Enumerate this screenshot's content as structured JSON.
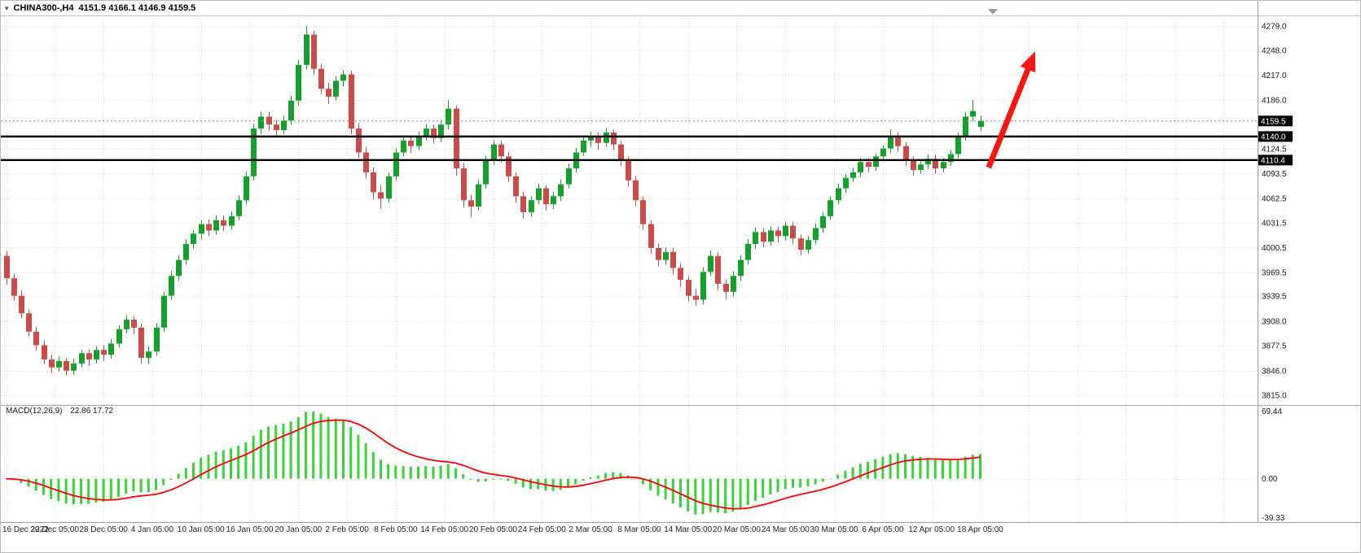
{
  "window": {
    "title_symbol": "CHINA300-,H4",
    "title_ohlc": "4151.9 4166.1 4146.9 4159.5"
  },
  "indicator_label": {
    "name": "MACD(12,26,9)",
    "values": "22.86 17.72"
  },
  "colors": {
    "bull": "#14a02d",
    "bear": "#cd4a4a",
    "macd_histogram": "#3ad13a",
    "macd_signal": "#ff0000",
    "grid": "#d6d6d6",
    "hline": "#000000",
    "tag_bg": "#000000",
    "tag_fg": "#ffffff",
    "arrow": "#ff1414",
    "axis_text": "#1a1a1a",
    "frame": "#c0c0c0",
    "last_price_line": "#888888"
  },
  "chart_data": {
    "type": "candlestick",
    "symbol": "CHINA300-",
    "timeframe": "H4",
    "ohlc_current": {
      "open": 4151.9,
      "high": 4166.1,
      "low": 4146.9,
      "close": 4159.5
    },
    "ylim": [
      3810,
      4290
    ],
    "price_grid_labels": [
      4279.0,
      4248.0,
      4217.0,
      4186.0,
      4124.5,
      4093.5,
      4062.5,
      4031.5,
      4000.5,
      3969.5,
      3939.5,
      3908.0,
      3877.5,
      3846.0,
      3815.0
    ],
    "price_tags": [
      4159.5,
      4140.0,
      4110.4
    ],
    "hlines": [
      4140.0,
      4110.4
    ],
    "last_price": 4159.5,
    "x_labels": [
      "16 Dec 2022",
      "22 Dec 05:00",
      "28 Dec 05:00",
      "4 Jan 05:00",
      "10 Jan 05:00",
      "16 Jan 05:00",
      "20 Jan 05:00",
      "2 Feb 05:00",
      "8 Feb 05:00",
      "14 Feb 05:00",
      "20 Feb 05:00",
      "24 Feb 05:00",
      "2 Mar 05:00",
      "8 Mar 05:00",
      "14 Mar 05:00",
      "20 Mar 05:00",
      "24 Mar 05:00",
      "30 Mar 05:00",
      "6 Apr 05:00",
      "12 Apr 05:00",
      "18 Apr 05:00"
    ],
    "candles": [
      [
        3990,
        3996,
        3954,
        3962
      ],
      [
        3962,
        3968,
        3934,
        3940
      ],
      [
        3940,
        3947,
        3912,
        3918
      ],
      [
        3918,
        3923,
        3889,
        3895
      ],
      [
        3895,
        3901,
        3871,
        3878
      ],
      [
        3878,
        3884,
        3854,
        3860
      ],
      [
        3860,
        3866,
        3843,
        3850
      ],
      [
        3850,
        3864,
        3845,
        3858
      ],
      [
        3858,
        3862,
        3840,
        3846
      ],
      [
        3846,
        3861,
        3841,
        3855
      ],
      [
        3855,
        3872,
        3850,
        3868
      ],
      [
        3868,
        3873,
        3852,
        3860
      ],
      [
        3860,
        3877,
        3855,
        3872
      ],
      [
        3872,
        3878,
        3858,
        3866
      ],
      [
        3866,
        3886,
        3861,
        3880
      ],
      [
        3880,
        3903,
        3875,
        3898
      ],
      [
        3898,
        3916,
        3893,
        3910
      ],
      [
        3910,
        3915,
        3892,
        3900
      ],
      [
        3900,
        3905,
        3855,
        3862
      ],
      [
        3862,
        3877,
        3854,
        3870
      ],
      [
        3870,
        3906,
        3865,
        3900
      ],
      [
        3900,
        3945,
        3895,
        3940
      ],
      [
        3940,
        3971,
        3935,
        3965
      ],
      [
        3965,
        3991,
        3959,
        3985
      ],
      [
        3985,
        4011,
        3979,
        4005
      ],
      [
        4005,
        4023,
        3999,
        4018
      ],
      [
        4018,
        4035,
        4011,
        4030
      ],
      [
        4030,
        4036,
        4015,
        4022
      ],
      [
        4022,
        4041,
        4017,
        4035
      ],
      [
        4035,
        4041,
        4021,
        4028
      ],
      [
        4028,
        4046,
        4023,
        4040
      ],
      [
        4040,
        4066,
        4035,
        4060
      ],
      [
        4060,
        4096,
        4055,
        4090
      ],
      [
        4090,
        4156,
        4085,
        4150
      ],
      [
        4150,
        4171,
        4143,
        4165
      ],
      [
        4165,
        4171,
        4147,
        4155
      ],
      [
        4155,
        4161,
        4139,
        4148
      ],
      [
        4148,
        4166,
        4143,
        4160
      ],
      [
        4160,
        4191,
        4155,
        4185
      ],
      [
        4185,
        4236,
        4179,
        4230
      ],
      [
        4230,
        4279,
        4224,
        4268
      ],
      [
        4268,
        4273,
        4217,
        4225
      ],
      [
        4225,
        4231,
        4193,
        4200
      ],
      [
        4200,
        4207,
        4181,
        4190
      ],
      [
        4190,
        4216,
        4185,
        4210
      ],
      [
        4210,
        4223,
        4203,
        4218
      ],
      [
        4218,
        4223,
        4143,
        4150
      ],
      [
        4150,
        4157,
        4113,
        4120
      ],
      [
        4120,
        4127,
        4087,
        4095
      ],
      [
        4095,
        4101,
        4061,
        4070
      ],
      [
        4070,
        4079,
        4049,
        4062
      ],
      [
        4062,
        4095,
        4057,
        4090
      ],
      [
        4090,
        4125,
        4085,
        4120
      ],
      [
        4120,
        4141,
        4115,
        4135
      ],
      [
        4135,
        4141,
        4119,
        4128
      ],
      [
        4128,
        4146,
        4123,
        4140
      ],
      [
        4140,
        4156,
        4135,
        4150
      ],
      [
        4150,
        4155,
        4131,
        4138
      ],
      [
        4138,
        4161,
        4133,
        4155
      ],
      [
        4155,
        4186,
        4149,
        4175
      ],
      [
        4175,
        4179,
        4091,
        4100
      ],
      [
        4100,
        4107,
        4051,
        4060
      ],
      [
        4060,
        4067,
        4039,
        4052
      ],
      [
        4052,
        4086,
        4047,
        4080
      ],
      [
        4080,
        4116,
        4075,
        4110
      ],
      [
        4110,
        4135,
        4105,
        4130
      ],
      [
        4130,
        4135,
        4107,
        4115
      ],
      [
        4115,
        4121,
        4083,
        4090
      ],
      [
        4090,
        4095,
        4057,
        4065
      ],
      [
        4065,
        4071,
        4037,
        4045
      ],
      [
        4045,
        4065,
        4039,
        4060
      ],
      [
        4060,
        4081,
        4055,
        4075
      ],
      [
        4075,
        4079,
        4047,
        4055
      ],
      [
        4055,
        4071,
        4049,
        4065
      ],
      [
        4065,
        4086,
        4059,
        4080
      ],
      [
        4080,
        4106,
        4075,
        4100
      ],
      [
        4100,
        4126,
        4095,
        4120
      ],
      [
        4120,
        4141,
        4115,
        4135
      ],
      [
        4135,
        4146,
        4127,
        4140
      ],
      [
        4140,
        4145,
        4123,
        4132
      ],
      [
        4132,
        4151,
        4127,
        4145
      ],
      [
        4145,
        4149,
        4123,
        4130
      ],
      [
        4130,
        4135,
        4103,
        4110
      ],
      [
        4110,
        4115,
        4077,
        4085
      ],
      [
        4085,
        4091,
        4053,
        4060
      ],
      [
        4060,
        4065,
        4023,
        4030
      ],
      [
        4030,
        4035,
        3993,
        4000
      ],
      [
        4000,
        4006,
        3977,
        3985
      ],
      [
        3985,
        4001,
        3979,
        3995
      ],
      [
        3995,
        4000,
        3967,
        3975
      ],
      [
        3975,
        3981,
        3951,
        3960
      ],
      [
        3960,
        3965,
        3933,
        3940
      ],
      [
        3940,
        3949,
        3927,
        3935
      ],
      [
        3935,
        3976,
        3929,
        3970
      ],
      [
        3970,
        3997,
        3965,
        3990
      ],
      [
        3990,
        3995,
        3947,
        3955
      ],
      [
        3955,
        3961,
        3935,
        3945
      ],
      [
        3945,
        3971,
        3939,
        3965
      ],
      [
        3965,
        3991,
        3959,
        3985
      ],
      [
        3985,
        4011,
        3979,
        4005
      ],
      [
        4005,
        4026,
        3999,
        4020
      ],
      [
        4020,
        4025,
        4001,
        4008
      ],
      [
        4008,
        4027,
        4003,
        4022
      ],
      [
        4022,
        4027,
        4007,
        4015
      ],
      [
        4015,
        4033,
        4009,
        4028
      ],
      [
        4028,
        4033,
        4005,
        4012
      ],
      [
        4012,
        4017,
        3991,
        3998
      ],
      [
        3998,
        4015,
        3993,
        4010
      ],
      [
        4010,
        4031,
        4005,
        4025
      ],
      [
        4025,
        4045,
        4019,
        4040
      ],
      [
        4040,
        4065,
        4035,
        4060
      ],
      [
        4060,
        4081,
        4055,
        4075
      ],
      [
        4075,
        4093,
        4069,
        4088
      ],
      [
        4088,
        4101,
        4083,
        4095
      ],
      [
        4095,
        4113,
        4089,
        4108
      ],
      [
        4108,
        4113,
        4095,
        4102
      ],
      [
        4102,
        4119,
        4097,
        4115
      ],
      [
        4115,
        4129,
        4109,
        4125
      ],
      [
        4125,
        4149,
        4119,
        4140
      ],
      [
        4140,
        4145,
        4121,
        4128
      ],
      [
        4128,
        4133,
        4103,
        4110
      ],
      [
        4110,
        4115,
        4091,
        4098
      ],
      [
        4098,
        4109,
        4093,
        4105
      ],
      [
        4105,
        4117,
        4099,
        4112
      ],
      [
        4112,
        4117,
        4093,
        4100
      ],
      [
        4100,
        4113,
        4095,
        4108
      ],
      [
        4108,
        4123,
        4103,
        4118
      ],
      [
        4118,
        4145,
        4113,
        4140
      ],
      [
        4140,
        4171,
        4135,
        4165
      ],
      [
        4165,
        4186,
        4159,
        4172
      ],
      [
        4151.9,
        4166.1,
        4146.9,
        4159.5
      ]
    ],
    "macd": {
      "name": "MACD",
      "params": [
        12,
        26,
        9
      ],
      "current_macd": 22.86,
      "current_signal": 17.72,
      "axis_labels": [
        "69.44",
        "0.00",
        "-39.33"
      ]
    },
    "annotations": [
      {
        "type": "arrow",
        "direction": "up-right",
        "from_x_frac": 0.786,
        "from_price": 4101,
        "to_x_frac": 0.823,
        "to_price": 4247
      }
    ]
  }
}
